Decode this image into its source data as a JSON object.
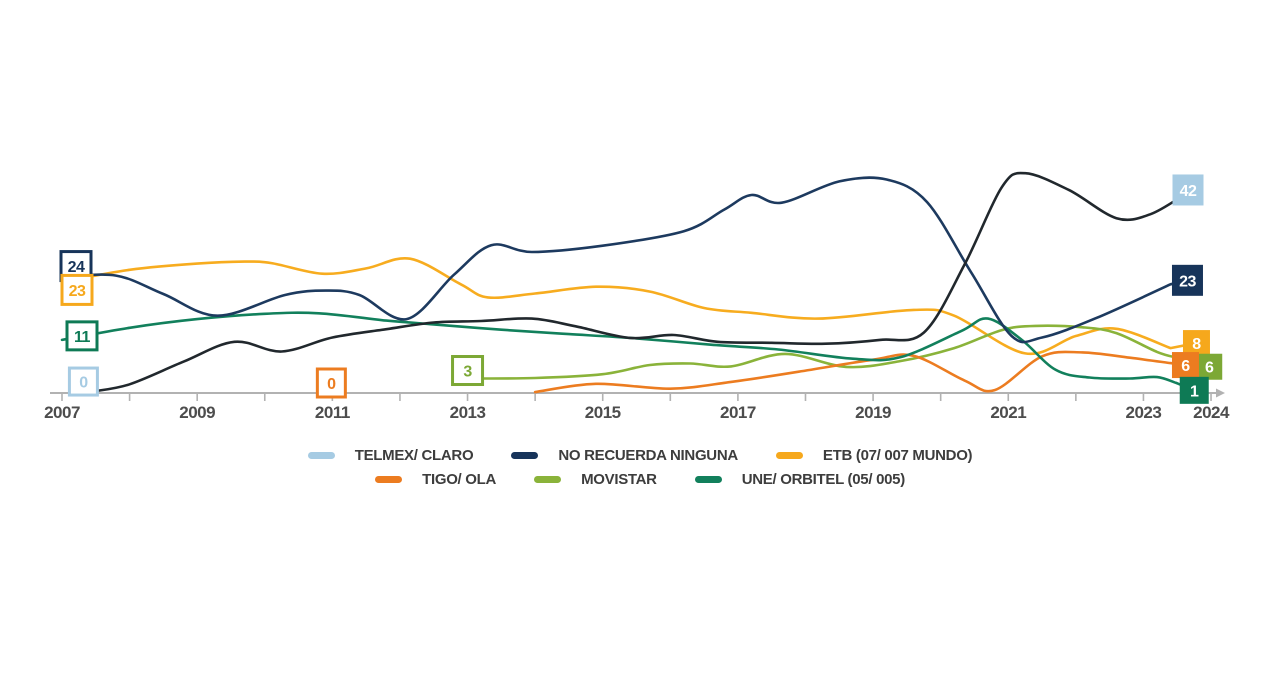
{
  "chart_data": {
    "type": "line",
    "title": "",
    "subtitle": "",
    "x_axis": {
      "range": [
        2007,
        2024
      ],
      "labeled_tick_years": [
        "2007",
        "2009",
        "2011",
        "2013",
        "2015",
        "2017",
        "2019",
        "2021",
        "2023",
        "2024"
      ],
      "minor_tick_every_year": true,
      "arrow_at_end": true
    },
    "y_axis": {
      "visible": false,
      "range": [
        0,
        47
      ]
    },
    "grid": false,
    "legend_position": "bottom",
    "legend_rows": [
      [
        "telmex_claro",
        "no_recuerda",
        "etb"
      ],
      [
        "tigo",
        "movistar",
        "une"
      ]
    ],
    "series": [
      {
        "id": "telmex_claro",
        "name": "TELMEX/ CLARO",
        "swatch_color": "#a6cbe3",
        "line_color": "#21282d",
        "box_color": "#a6cbe3",
        "start_label": "0",
        "start_year": 2007,
        "end_label": "42",
        "end_year": 2024,
        "points": [
          [
            2007.45,
            0.3
          ],
          [
            2008,
            1.8
          ],
          [
            2008.8,
            6.5
          ],
          [
            2009.55,
            10.6
          ],
          [
            2010.25,
            8.6
          ],
          [
            2011,
            11.5
          ],
          [
            2011.8,
            13.2
          ],
          [
            2012.5,
            14.6
          ],
          [
            2013.2,
            14.9
          ],
          [
            2013.95,
            15.4
          ],
          [
            2014.6,
            13.8
          ],
          [
            2015.4,
            11.4
          ],
          [
            2016.05,
            12
          ],
          [
            2016.7,
            10.6
          ],
          [
            2017.5,
            10.4
          ],
          [
            2018.3,
            10.2
          ],
          [
            2019.1,
            11
          ],
          [
            2019.75,
            12.5
          ],
          [
            2020.35,
            26.5
          ],
          [
            2020.9,
            42.5
          ],
          [
            2021.25,
            45.5
          ],
          [
            2021.9,
            42
          ],
          [
            2022.6,
            36.2
          ],
          [
            2023.1,
            37
          ],
          [
            2023.6,
            41
          ]
        ]
      },
      {
        "id": "no_recuerda",
        "name": "NO RECUERDA NINGUNA",
        "swatch_color": "#17345a",
        "line_color": "#1d3a5f",
        "box_color": "#17345a",
        "start_label": "24",
        "start_year": 2007,
        "end_label": "23",
        "end_year": 2024,
        "points": [
          [
            2007,
            24
          ],
          [
            2007.8,
            24.3
          ],
          [
            2008.5,
            20.5
          ],
          [
            2009.3,
            16
          ],
          [
            2010.3,
            20.3
          ],
          [
            2010.9,
            21.2
          ],
          [
            2011.4,
            20.3
          ],
          [
            2012.1,
            15.3
          ],
          [
            2012.8,
            24.5
          ],
          [
            2013.35,
            30.6
          ],
          [
            2013.95,
            29.2
          ],
          [
            2015,
            30.5
          ],
          [
            2016.2,
            33.5
          ],
          [
            2016.8,
            38
          ],
          [
            2017.2,
            41
          ],
          [
            2017.65,
            39.4
          ],
          [
            2018.5,
            43.8
          ],
          [
            2019.2,
            44.2
          ],
          [
            2019.8,
            39.5
          ],
          [
            2020.45,
            25
          ],
          [
            2021.05,
            11.8
          ],
          [
            2021.5,
            11.5
          ],
          [
            2022.3,
            15.5
          ],
          [
            2023.4,
            22.5
          ]
        ]
      },
      {
        "id": "etb",
        "name": "ETB (07/ 007 MUNDO)",
        "swatch_color": "#f6a81c",
        "line_color": "#f7ac1f",
        "box_color": "#f6a81c",
        "start_label": "23",
        "start_year": 2007,
        "end_label": "8",
        "end_year": 2024,
        "points": [
          [
            2007,
            23
          ],
          [
            2008,
            25.5
          ],
          [
            2009,
            26.8
          ],
          [
            2009.7,
            27.2
          ],
          [
            2010.1,
            26.9
          ],
          [
            2010.85,
            24.7
          ],
          [
            2011.5,
            25.8
          ],
          [
            2012.15,
            27.8
          ],
          [
            2012.9,
            22.5
          ],
          [
            2013.3,
            19.8
          ],
          [
            2014,
            20.6
          ],
          [
            2014.9,
            22
          ],
          [
            2015.7,
            21
          ],
          [
            2016.5,
            17.6
          ],
          [
            2017.2,
            16.6
          ],
          [
            2018.2,
            15.4
          ],
          [
            2019.6,
            17.2
          ],
          [
            2020.2,
            16
          ],
          [
            2021.25,
            8.2
          ],
          [
            2022,
            11.8
          ],
          [
            2022.6,
            13.3
          ],
          [
            2023.4,
            9.3
          ]
        ]
      },
      {
        "id": "tigo",
        "name": "TIGO/ OLA",
        "swatch_color": "#ec7c20",
        "line_color": "#ec7c20",
        "box_color": "#ec7c20",
        "start_label": "0",
        "start_year": 2011,
        "end_label": "6",
        "end_year": 2024,
        "points": [
          [
            2011,
            0
          ],
          [
            2012,
            0
          ],
          [
            2013,
            0
          ],
          [
            2014,
            0.2
          ],
          [
            2014.9,
            1.9
          ],
          [
            2016,
            0.9
          ],
          [
            2016.9,
            2.3
          ],
          [
            2017.9,
            4.4
          ],
          [
            2019,
            6.9
          ],
          [
            2019.6,
            7.7
          ],
          [
            2020.35,
            2.6
          ],
          [
            2020.8,
            0.6
          ],
          [
            2021.5,
            7.6
          ],
          [
            2022.1,
            8.4
          ],
          [
            2022.8,
            7.3
          ],
          [
            2023.4,
            6.2
          ]
        ]
      },
      {
        "id": "movistar",
        "name": "MOVISTAR",
        "swatch_color": "#8ab33a",
        "line_color": "#8ab33a",
        "box_color": "#7ca835",
        "start_label": "3",
        "start_year": 2013,
        "end_label": "6",
        "end_year": 2024,
        "points": [
          [
            2013,
            3
          ],
          [
            2014,
            3.1
          ],
          [
            2015,
            3.9
          ],
          [
            2015.7,
            5.8
          ],
          [
            2016.3,
            6.1
          ],
          [
            2016.9,
            5.5
          ],
          [
            2017.7,
            8.1
          ],
          [
            2018.6,
            5.4
          ],
          [
            2019.4,
            6.6
          ],
          [
            2020.2,
            9.3
          ],
          [
            2020.9,
            13
          ],
          [
            2021.4,
            13.9
          ],
          [
            2022.1,
            13.6
          ],
          [
            2022.6,
            12.4
          ],
          [
            2023.2,
            8.5
          ],
          [
            2023.5,
            7.3
          ]
        ]
      },
      {
        "id": "une",
        "name": "UNE/ ORBITEL (05/ 005)",
        "swatch_color": "#12805c",
        "line_color": "#12805c",
        "box_color": "#0e7a55",
        "start_label": "11",
        "start_year": 2007,
        "end_label": "1",
        "end_year": 2024,
        "points": [
          [
            2007,
            11
          ],
          [
            2008,
            13.5
          ],
          [
            2009,
            15.3
          ],
          [
            2010,
            16.4
          ],
          [
            2010.8,
            16.5
          ],
          [
            2011.8,
            15
          ],
          [
            2012.5,
            14.2
          ],
          [
            2013.5,
            13.1
          ],
          [
            2014.5,
            12.2
          ],
          [
            2015.5,
            11.3
          ],
          [
            2016.6,
            10
          ],
          [
            2017.6,
            9
          ],
          [
            2018.7,
            7.1
          ],
          [
            2019.4,
            7.4
          ],
          [
            2020.3,
            12.8
          ],
          [
            2020.7,
            15.4
          ],
          [
            2021.2,
            11
          ],
          [
            2021.7,
            4.8
          ],
          [
            2022.2,
            3.2
          ],
          [
            2022.8,
            3
          ],
          [
            2023.2,
            3.3
          ],
          [
            2023.5,
            2
          ]
        ]
      }
    ]
  },
  "colors": {
    "axis": "#b2b2b2",
    "tick": "#b2b2b2",
    "year_text": "#4d4d4d",
    "legend_text": "#3d3d3d",
    "start_box_fill": "#ffffff",
    "end_box_text": "#ffffff"
  }
}
